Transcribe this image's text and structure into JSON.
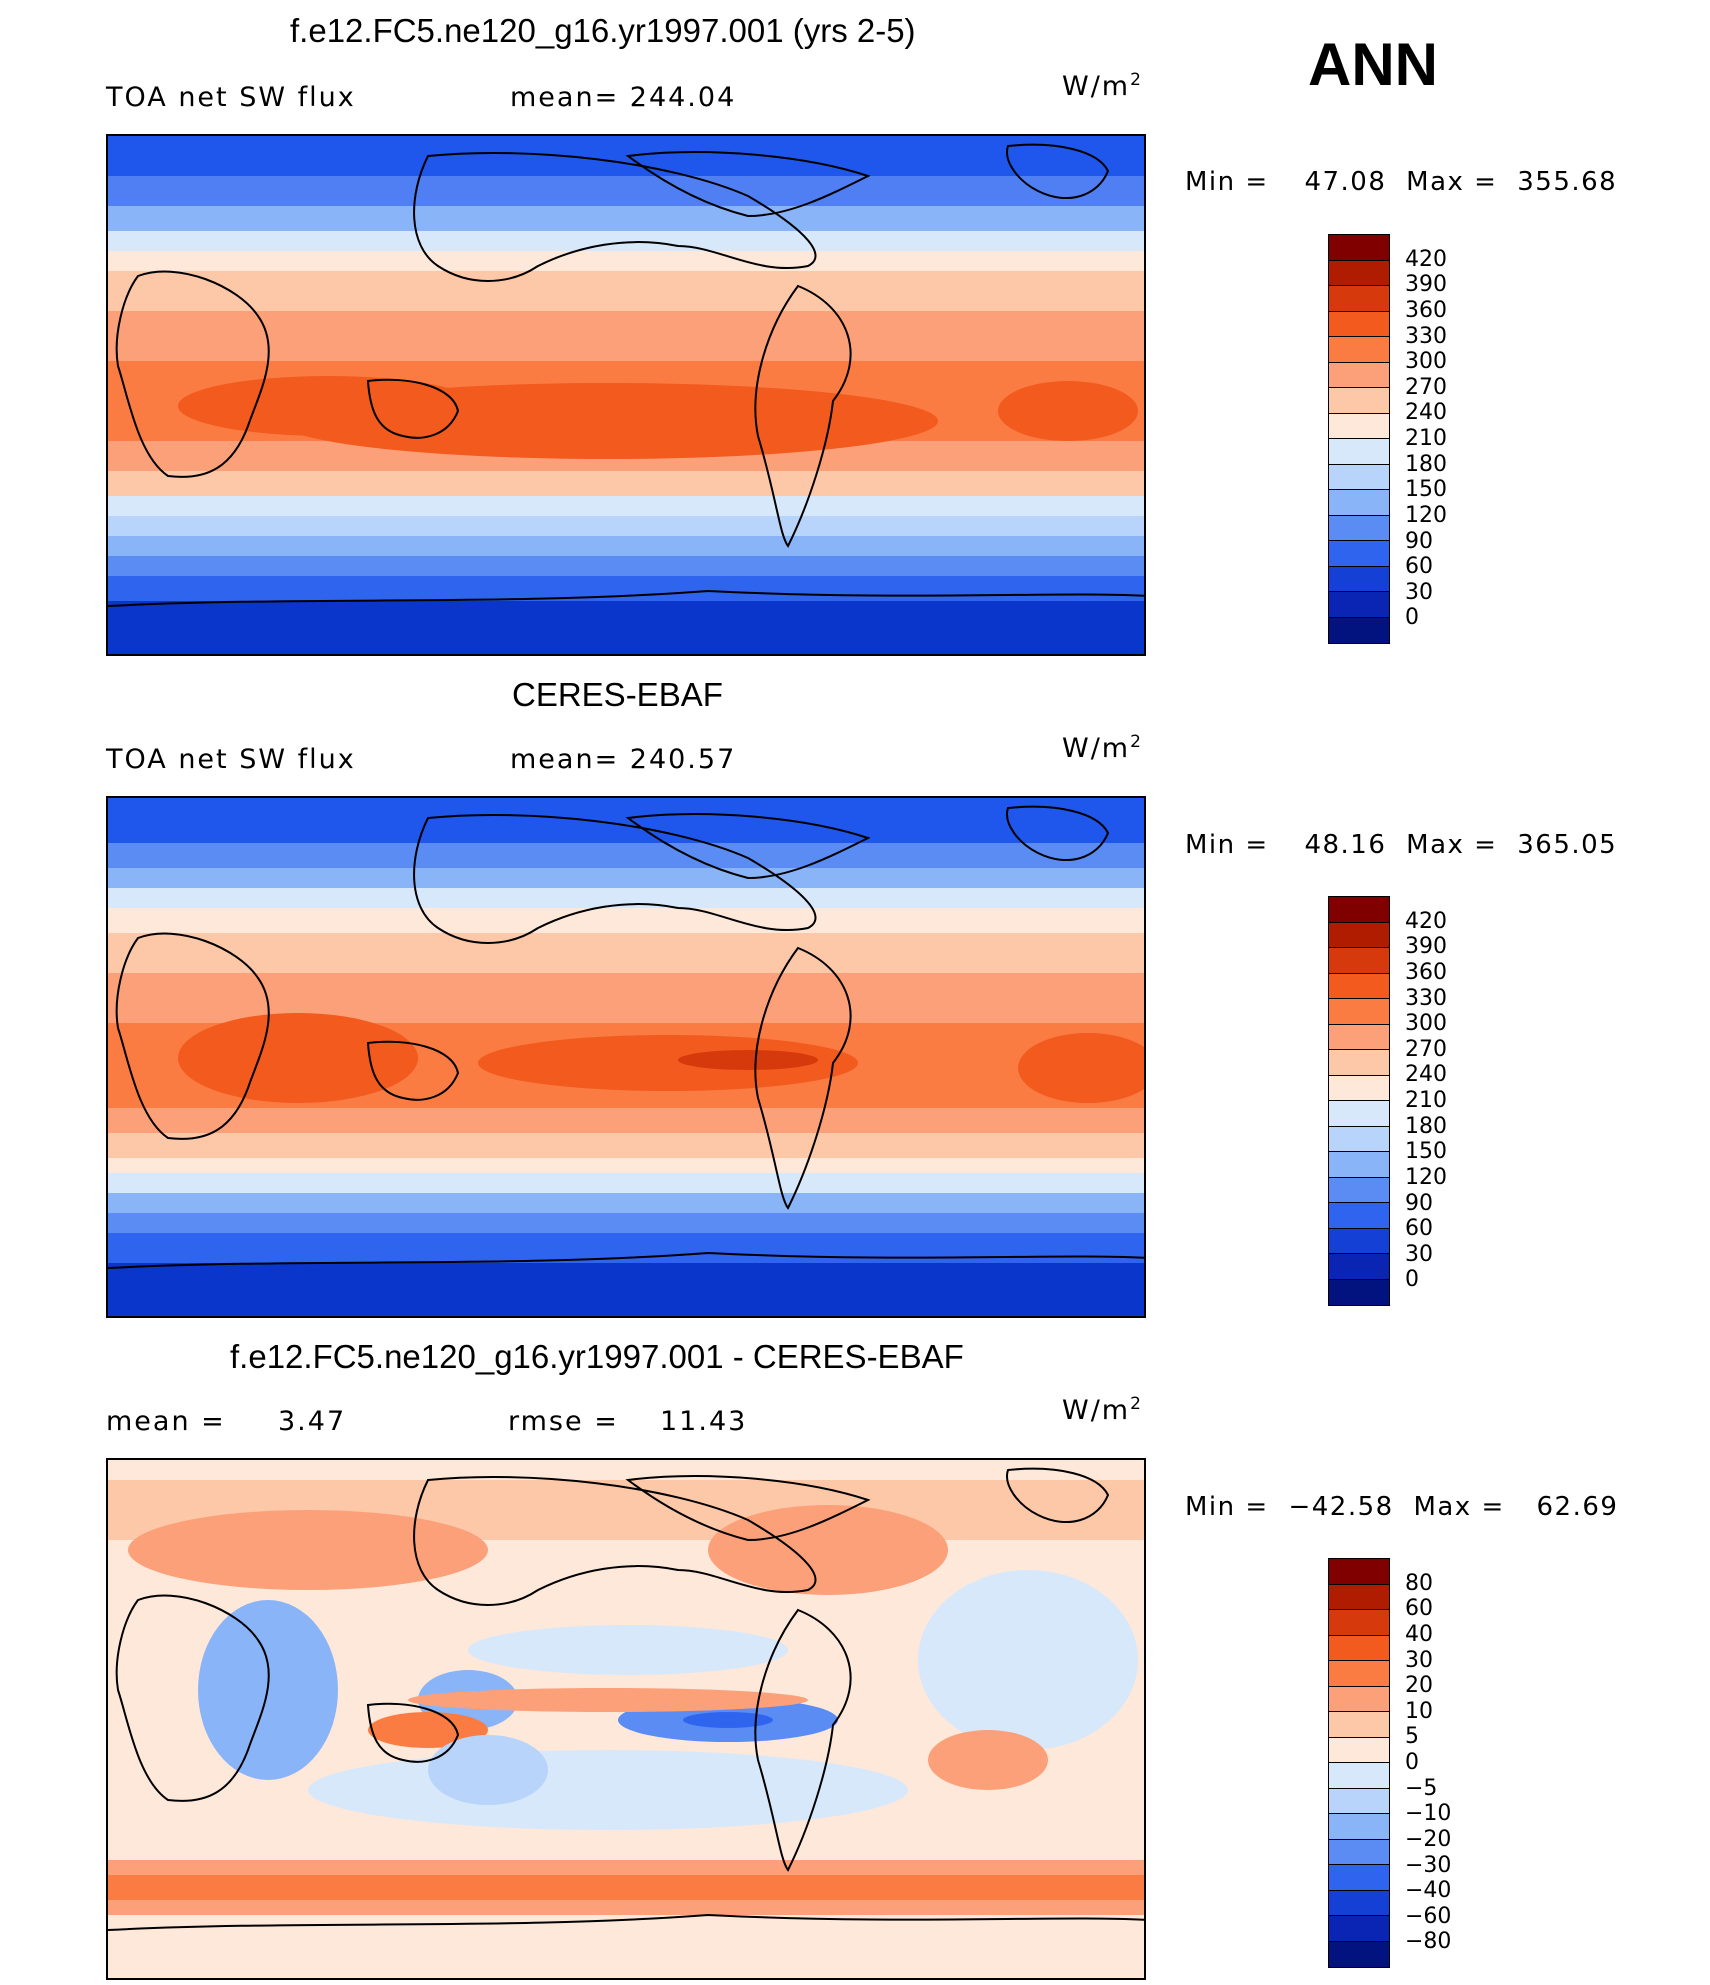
{
  "season": "ANN",
  "units": "W/m",
  "units_sup": "2",
  "chart_data": [
    {
      "type": "heatmap",
      "title": "f.e12.FC5.ne120_g16.yr1997.001 (yrs 2-5)",
      "left_label": "TOA net SW flux",
      "mid_label": "mean= 244.04",
      "min_label": "Min =",
      "min_value": "47.08",
      "max_label": "Max =",
      "max_value": "355.68",
      "colorbar_levels": [
        "420",
        "390",
        "360",
        "330",
        "300",
        "270",
        "240",
        "210",
        "180",
        "150",
        "120",
        "90",
        "60",
        "30",
        "0"
      ],
      "colorbar_colors": [
        "#800000",
        "#b01c00",
        "#d63a0c",
        "#f25a1e",
        "#fa7c42",
        "#fca07a",
        "#fdc8a8",
        "#fde8da",
        "#d8e8fb",
        "#b8d4fa",
        "#8ab4f8",
        "#5a8cf4",
        "#2f64ee",
        "#1540d6",
        "#0a24b4",
        "#02127e"
      ]
    },
    {
      "type": "heatmap",
      "title": "CERES-EBAF",
      "left_label": "TOA net SW flux",
      "mid_label": "mean= 240.57",
      "min_label": "Min =",
      "min_value": "48.16",
      "max_label": "Max =",
      "max_value": "365.05",
      "colorbar_levels": [
        "420",
        "390",
        "360",
        "330",
        "300",
        "270",
        "240",
        "210",
        "180",
        "150",
        "120",
        "90",
        "60",
        "30",
        "0"
      ],
      "colorbar_colors": [
        "#800000",
        "#b01c00",
        "#d63a0c",
        "#f25a1e",
        "#fa7c42",
        "#fca07a",
        "#fdc8a8",
        "#fde8da",
        "#d8e8fb",
        "#b8d4fa",
        "#8ab4f8",
        "#5a8cf4",
        "#2f64ee",
        "#1540d6",
        "#0a24b4",
        "#02127e"
      ]
    },
    {
      "type": "heatmap",
      "title": "f.e12.FC5.ne120_g16.yr1997.001 - CERES-EBAF",
      "left_label": "mean =",
      "left_value": "3.47",
      "mid_label": "rmse =",
      "mid_value": "11.43",
      "min_label": "Min =",
      "min_value": "−42.58",
      "max_label": "Max =",
      "max_value": "62.69",
      "colorbar_levels": [
        "80",
        "60",
        "40",
        "30",
        "20",
        "10",
        "5",
        "0",
        "−5",
        "−10",
        "−20",
        "−30",
        "−40",
        "−60",
        "−80"
      ],
      "colorbar_colors": [
        "#800000",
        "#b01c00",
        "#d63a0c",
        "#f25a1e",
        "#fa7c42",
        "#fca07a",
        "#fdc8a8",
        "#fde8da",
        "#d8e8fb",
        "#b8d4fa",
        "#8ab4f8",
        "#5a8cf4",
        "#2f64ee",
        "#1540d6",
        "#0a24b4",
        "#02127e"
      ]
    }
  ]
}
